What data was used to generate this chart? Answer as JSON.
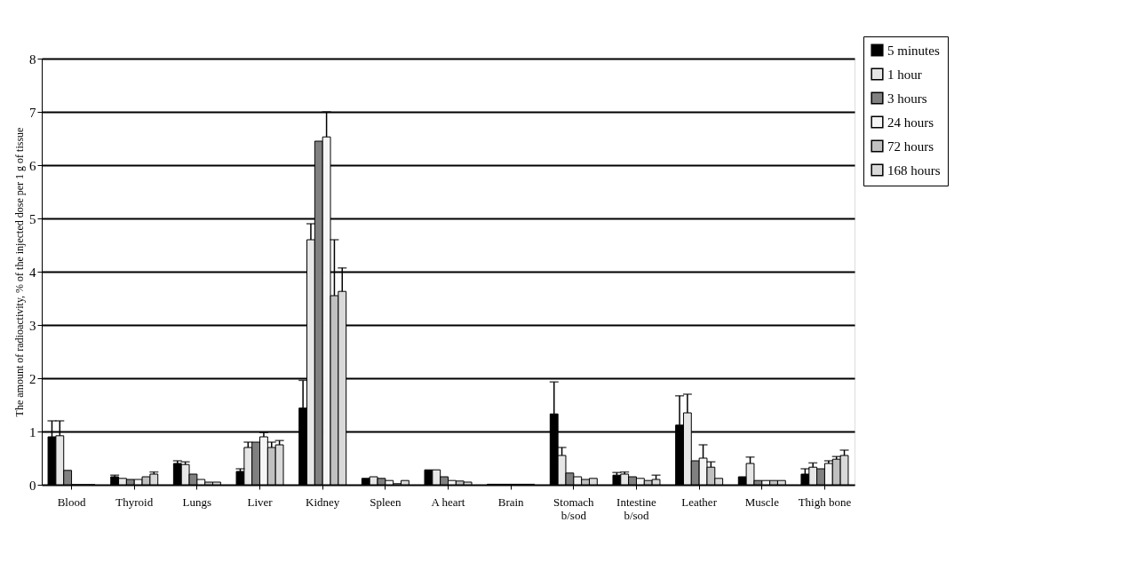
{
  "chart_data": {
    "type": "bar",
    "ylabel": "The amount of radioactivity, % of the injected dose per 1 g of tissue",
    "categories": [
      "Blood",
      "Thyroid",
      "Lungs",
      "Liver",
      "Kidney",
      "Spleen",
      "A heart",
      "Brain",
      "Stomach\nb/sod",
      "Intestine\nb/sod",
      "Leather",
      "Muscle",
      "Thigh bone"
    ],
    "ylim": [
      0,
      8
    ],
    "yticks": [
      0,
      1,
      2,
      3,
      4,
      5,
      6,
      7,
      8
    ],
    "grid": "y",
    "legend": "top right",
    "series": [
      {
        "name": "5 minutes",
        "color": "#000000",
        "values": [
          0.9,
          0.15,
          0.4,
          0.25,
          1.44,
          0.12,
          0.28,
          0.01,
          1.33,
          0.18,
          1.12,
          0.15,
          0.2
        ],
        "errors": [
          0.3,
          0.03,
          0.05,
          0.05,
          0.52,
          null,
          null,
          null,
          0.6,
          0.05,
          0.55,
          null,
          0.1
        ]
      },
      {
        "name": "1 hour",
        "color": "#e6e6e6",
        "values": [
          0.92,
          0.12,
          0.38,
          0.7,
          4.6,
          0.15,
          0.28,
          0.01,
          0.55,
          0.2,
          1.35,
          0.4,
          0.33
        ],
        "errors": [
          0.28,
          null,
          0.05,
          0.1,
          0.3,
          null,
          null,
          null,
          0.15,
          0.04,
          0.35,
          0.12,
          0.08
        ]
      },
      {
        "name": "3 hours",
        "color": "#808080",
        "values": [
          0.27,
          0.1,
          0.2,
          0.8,
          6.45,
          0.12,
          0.15,
          0.01,
          0.22,
          0.15,
          0.45,
          0.08,
          0.3
        ]
      },
      {
        "name": "24 hours",
        "color": "#f5f5f5",
        "values": [
          0,
          0.1,
          0.1,
          0.9,
          6.53,
          0.08,
          0.08,
          0.01,
          0.15,
          0.12,
          0.5,
          0.08,
          0.4
        ],
        "errors": [
          null,
          null,
          null,
          0.08,
          0.47,
          null,
          null,
          null,
          null,
          null,
          0.25,
          null,
          0.05
        ]
      },
      {
        "name": "72 hours",
        "color": "#c0c0c0",
        "values": [
          0,
          0.15,
          0.05,
          0.7,
          3.55,
          0.02,
          0.07,
          0.01,
          0.1,
          0.08,
          0.33,
          0.08,
          0.48
        ],
        "errors": [
          null,
          null,
          null,
          0.1,
          1.05,
          null,
          null,
          null,
          null,
          null,
          0.1,
          null,
          0.05
        ]
      },
      {
        "name": "168 hours",
        "color": "#d9d9d9",
        "values": [
          0,
          0.2,
          0.05,
          0.75,
          3.63,
          0.08,
          0.05,
          0.01,
          0.12,
          0.1,
          0.12,
          0.08,
          0.55
        ],
        "errors": [
          null,
          0.04,
          null,
          0.08,
          0.44,
          null,
          null,
          null,
          null,
          0.08,
          null,
          null,
          0.1
        ]
      }
    ]
  }
}
